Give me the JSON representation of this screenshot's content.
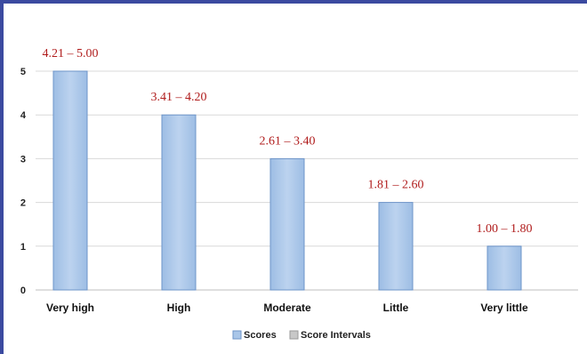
{
  "chart_data": {
    "type": "bar",
    "categories": [
      "Very high",
      "High",
      "Moderate",
      "Little",
      "Very little"
    ],
    "series": [
      {
        "name": "Scores",
        "values": [
          5,
          4,
          3,
          2,
          1
        ],
        "color": "#a9c6e8"
      },
      {
        "name": "Score Intervals",
        "values": [
          0,
          0,
          0,
          0,
          0
        ],
        "color": "#c8c8c8"
      }
    ],
    "data_labels": [
      "4.21 – 5.00",
      "3.41 – 4.20",
      "2.61 – 3.40",
      "1.81 – 2.60",
      "1.00 – 1.80"
    ],
    "ylim": [
      0,
      5
    ],
    "yticks": [
      0,
      1,
      2,
      3,
      4,
      5
    ],
    "grid": true,
    "legend_position": "bottom",
    "data_label_color": "#b01c1c"
  }
}
